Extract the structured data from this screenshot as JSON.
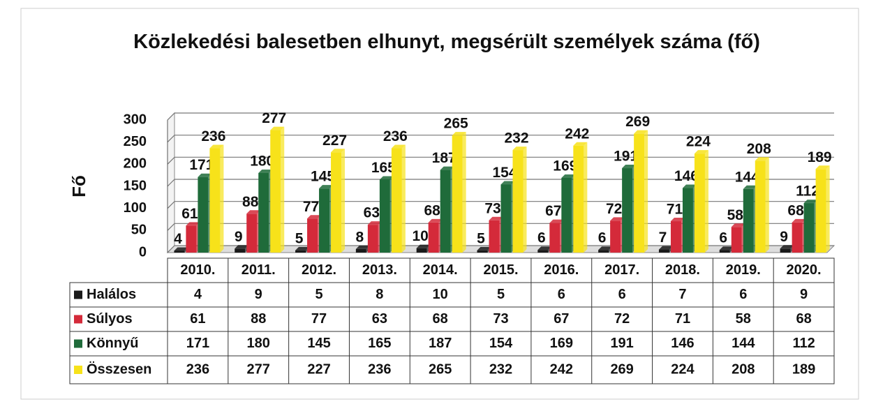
{
  "chart_data": {
    "type": "bar",
    "title": "Közlekedési balesetben elhunyt, megsérült személyek száma (fő)",
    "y_label": "Fő",
    "categories": [
      "2010.",
      "2011.",
      "2012.",
      "2013.",
      "2014.",
      "2015.",
      "2016.",
      "2017.",
      "2018.",
      "2019.",
      "2020."
    ],
    "series": [
      {
        "name": "Halálos",
        "color": "#1a1a1a",
        "values": [
          4,
          9,
          5,
          8,
          10,
          5,
          6,
          6,
          7,
          6,
          9
        ]
      },
      {
        "name": "Súlyos",
        "color": "#d42a3a",
        "values": [
          61,
          88,
          77,
          63,
          68,
          73,
          67,
          72,
          71,
          58,
          68
        ]
      },
      {
        "name": "Könnyű",
        "color": "#1f6b3a",
        "values": [
          171,
          180,
          145,
          165,
          187,
          154,
          169,
          191,
          146,
          144,
          112
        ]
      },
      {
        "name": "Összesen",
        "color": "#f7e21a",
        "values": [
          236,
          277,
          227,
          236,
          265,
          232,
          242,
          269,
          224,
          208,
          189
        ]
      }
    ],
    "ylim": [
      0,
      300
    ],
    "yticks": [
      0,
      50,
      100,
      150,
      200,
      250,
      300
    ],
    "grid": true
  }
}
